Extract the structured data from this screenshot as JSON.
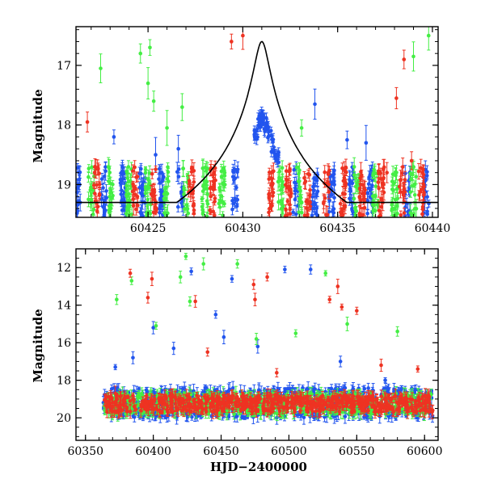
{
  "chart_data": [
    {
      "type": "scatter",
      "title": "",
      "xlabel": "",
      "ylabel": "Magnitude",
      "xlim": [
        60421.2,
        60440.3
      ],
      "ylim": [
        19.55,
        16.35
      ],
      "y_inverted": true,
      "grid": false,
      "x_ticks": [
        60425,
        60430,
        60435,
        60440
      ],
      "y_ticks": [
        17,
        18,
        19
      ],
      "model_curve": {
        "color": "#000000",
        "baseline": 19.3,
        "peak_x": 60431.0,
        "peak_y": 16.6,
        "width": 0.9
      },
      "series": [
        {
          "color": "#2255ee",
          "nights": [
            60421.3,
            60422.7,
            60423.7,
            60424.7,
            60425.7,
            60426.7,
            60429.6,
            60432.8,
            60433.8,
            60434.7,
            60435.7,
            60436.7,
            60438.7,
            60439.7
          ],
          "peak_points": [
            [
              60430.7,
              18.2
            ],
            [
              60430.9,
              17.95
            ],
            [
              60431.0,
              17.9
            ],
            [
              60431.2,
              18.0
            ],
            [
              60431.4,
              18.15
            ],
            [
              60431.6,
              18.35
            ],
            [
              60431.8,
              18.55
            ]
          ],
          "outliers": [
            [
              60423.2,
              18.2
            ],
            [
              60433.8,
              17.65
            ],
            [
              60435.5,
              18.25
            ],
            [
              60436.5,
              18.3
            ],
            [
              60425.4,
              18.5
            ],
            [
              60426.6,
              18.4
            ]
          ]
        },
        {
          "color": "#44ee44",
          "nights": [
            60422.0,
            60423.0,
            60424.0,
            60425.0,
            60426.0,
            60427.0,
            60428.0,
            60428.9,
            60432.0,
            60433.0,
            60436.0,
            60437.0,
            60438.0,
            60439.0
          ],
          "peak_points": [],
          "outliers": [
            [
              60422.5,
              17.05
            ],
            [
              60424.6,
              16.8
            ],
            [
              60425.1,
              16.7
            ],
            [
              60425.0,
              17.3
            ],
            [
              60425.3,
              17.6
            ],
            [
              60426.0,
              18.05
            ],
            [
              60426.8,
              17.7
            ],
            [
              60433.1,
              18.05
            ],
            [
              60439.0,
              16.85
            ],
            [
              60439.8,
              16.5
            ]
          ]
        },
        {
          "color": "#ee3322",
          "nights": [
            60422.3,
            60424.3,
            60425.3,
            60427.3,
            60428.4,
            60431.5,
            60432.4,
            60433.4,
            60434.4,
            60435.3,
            60436.3,
            60437.3,
            60438.4,
            60439.4
          ],
          "peak_points": [],
          "outliers": [
            [
              60421.8,
              17.95
            ],
            [
              60422.2,
              18.7
            ],
            [
              60429.4,
              16.6
            ],
            [
              60430.0,
              16.5
            ],
            [
              60438.5,
              16.9
            ],
            [
              60438.1,
              17.55
            ],
            [
              60438.9,
              18.6
            ],
            [
              60437.6,
              18.8
            ]
          ]
        }
      ]
    },
    {
      "type": "scatter",
      "title": "",
      "xlabel": "HJD−2400000",
      "ylabel": "Magnitude",
      "xlim": [
        60343,
        60610
      ],
      "ylim": [
        21.2,
        11.0
      ],
      "y_inverted": true,
      "grid": false,
      "x_ticks": [
        60350,
        60400,
        60450,
        60500,
        60550,
        60600
      ],
      "y_ticks": [
        12,
        14,
        16,
        18,
        20
      ],
      "band_x_range": [
        60363,
        60606
      ],
      "series": [
        {
          "color": "#2255ee",
          "band": [
            18.4,
            20.0
          ],
          "outliers": [
            [
              60372,
              17.3
            ],
            [
              60385,
              16.8
            ],
            [
              60400,
              15.2
            ],
            [
              60415,
              16.3
            ],
            [
              60428,
              12.2
            ],
            [
              60446,
              14.5
            ],
            [
              60452,
              15.7
            ],
            [
              60458,
              12.6
            ],
            [
              60477,
              16.2
            ],
            [
              60497,
              12.1
            ],
            [
              60516,
              12.1
            ],
            [
              60538,
              17.0
            ],
            [
              60571,
              18.0
            ]
          ]
        },
        {
          "color": "#44ee44",
          "band": [
            18.7,
            19.8
          ],
          "outliers": [
            [
              60373,
              13.7
            ],
            [
              60384,
              12.7
            ],
            [
              60402,
              15.1
            ],
            [
              60420,
              12.5
            ],
            [
              60424,
              11.4
            ],
            [
              60427,
              13.8
            ],
            [
              60437,
              11.8
            ],
            [
              60462,
              11.8
            ],
            [
              60476,
              15.8
            ],
            [
              60505,
              15.5
            ],
            [
              60527,
              12.3
            ],
            [
              60543,
              15.0
            ],
            [
              60580,
              15.4
            ]
          ]
        },
        {
          "color": "#ee3322",
          "band": [
            18.8,
            19.7
          ],
          "outliers": [
            [
              60372,
              18.7
            ],
            [
              60383,
              12.3
            ],
            [
              60396,
              13.6
            ],
            [
              60399,
              12.6
            ],
            [
              60431,
              13.8
            ],
            [
              60440,
              16.5
            ],
            [
              60474,
              12.9
            ],
            [
              60475,
              13.7
            ],
            [
              60484,
              12.5
            ],
            [
              60491,
              17.6
            ],
            [
              60530,
              13.7
            ],
            [
              60536,
              13.0
            ],
            [
              60539,
              14.1
            ],
            [
              60550,
              14.3
            ],
            [
              60568,
              17.2
            ],
            [
              60595,
              17.4
            ]
          ]
        }
      ]
    }
  ]
}
